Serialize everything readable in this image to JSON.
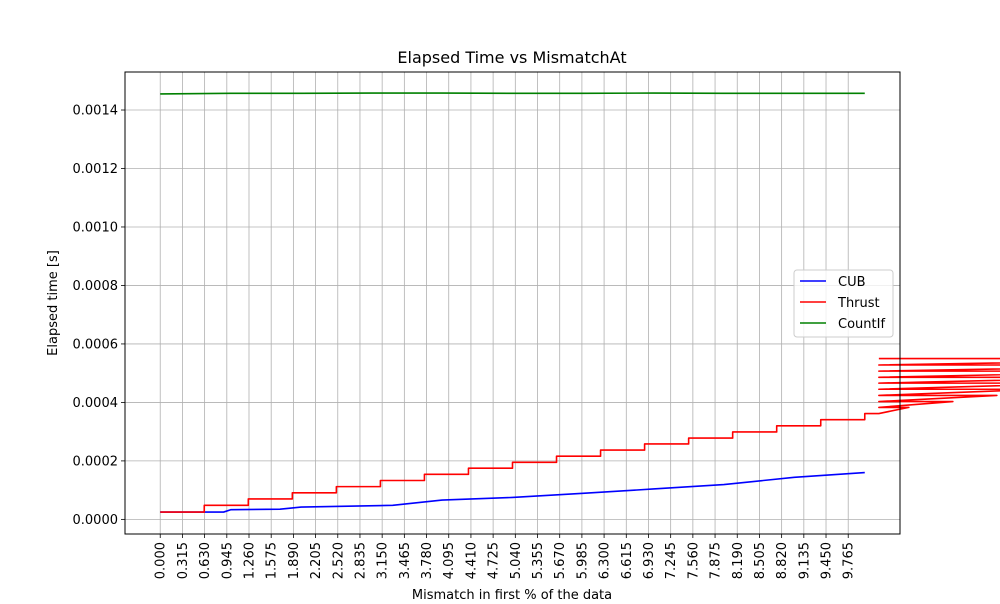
{
  "chart_data": {
    "type": "line",
    "title": "Elapsed Time vs MismatchAt",
    "xlabel": "Mismatch in first % of the data",
    "ylabel": "Elapsed time [s]",
    "xlim": [
      -0.5,
      10.5
    ],
    "ylim": [
      -5e-05,
      0.00153
    ],
    "grid": true,
    "legend_position": "center-right",
    "x_ticks": [
      "0.000",
      "0.315",
      "0.630",
      "0.945",
      "1.260",
      "1.575",
      "1.890",
      "2.205",
      "2.520",
      "2.835",
      "3.150",
      "3.465",
      "3.780",
      "4.095",
      "4.410",
      "4.725",
      "5.040",
      "5.355",
      "5.670",
      "5.985",
      "6.300",
      "6.615",
      "6.930",
      "7.245",
      "7.560",
      "7.875",
      "8.190",
      "8.505",
      "8.820",
      "9.135",
      "9.450",
      "9.765"
    ],
    "y_ticks": [
      "0.0000",
      "0.0002",
      "0.0004",
      "0.0006",
      "0.0008",
      "0.0010",
      "0.0012",
      "0.0014"
    ],
    "series": [
      {
        "name": "CUB",
        "color": "#0000ff",
        "x": [
          0,
          0.9,
          1.0,
          1.7,
          2.0,
          3.3,
          4.0,
          5.0,
          6.0,
          7.0,
          8.0,
          9.0,
          10.0
        ],
        "y": [
          2.5e-05,
          2.5e-05,
          3.3e-05,
          3.5e-05,
          4.2e-05,
          4.8e-05,
          6.6e-05,
          7.5e-05,
          8.9e-05,
          0.000104,
          0.000119,
          0.000144,
          0.00016
        ]
      },
      {
        "name": "Thrust",
        "color": "#ff0000",
        "step_width": 0.625,
        "step_values": [
          2.5e-05,
          4.8e-05,
          7e-05,
          9.1e-05,
          0.000112,
          0.000133,
          0.000154,
          0.000175,
          0.000195,
          0.000216,
          0.000237,
          0.000258,
          0.000278,
          0.000299,
          0.00032,
          0.000341,
          0.000362,
          0.000383,
          0.000403,
          0.000424,
          0.000445,
          0.000466,
          0.000486,
          0.000507,
          0.000528,
          0.00055
        ],
        "x_end": 10.2
      },
      {
        "name": "CountIf",
        "color": "#008000",
        "x": [
          0,
          1.0,
          2.0,
          3.0,
          4.0,
          5.0,
          6.0,
          7.0,
          8.0,
          9.0,
          10.0
        ],
        "y": [
          0.001455,
          0.001457,
          0.001457,
          0.001458,
          0.001458,
          0.001457,
          0.001457,
          0.001458,
          0.001457,
          0.001457,
          0.001457
        ]
      }
    ]
  }
}
